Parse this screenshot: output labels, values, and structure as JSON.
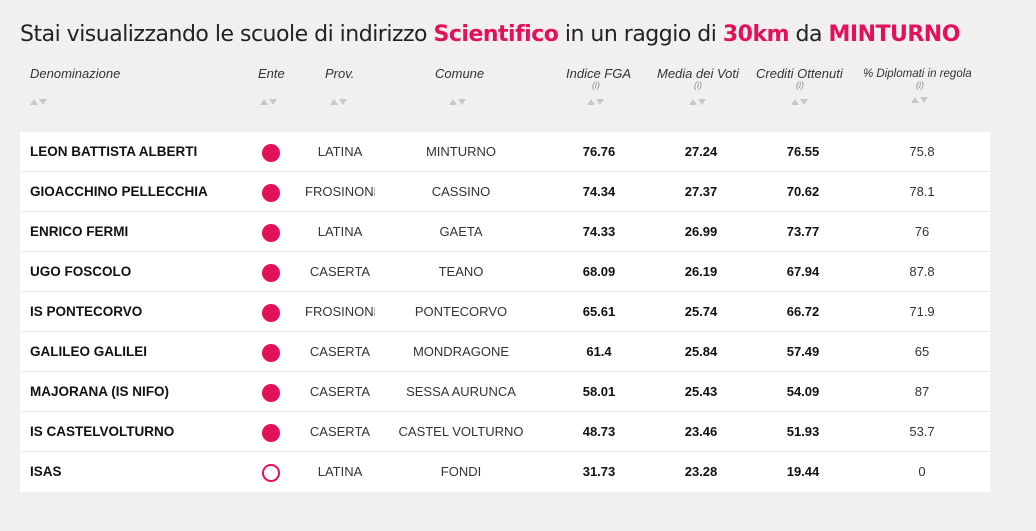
{
  "title": {
    "prefix": "Stai visualizzando le scuole di indirizzo ",
    "indirizzo": "Scientifico",
    "middle": " in un raggio di ",
    "raggio": "30km",
    "da": " da ",
    "citta": "MINTURNO"
  },
  "accent_color": "#e3105a",
  "columns": {
    "denominazione": "Denominazione",
    "ente": "Ente",
    "prov": "Prov.",
    "comune": "Comune",
    "indice_fga": "Indice FGA",
    "media_voti": "Media dei Voti",
    "crediti": "Crediti Ottenuti",
    "diplomati": "% Diplomati in regola",
    "info_marker": "(i)"
  },
  "rows": [
    {
      "name": "LEON BATTISTA ALBERTI",
      "ente": "filled-circle",
      "prov": "LATINA",
      "comune": "MINTURNO",
      "fga": "76.76",
      "media": "27.24",
      "crediti": "76.55",
      "diplomati": "75.8"
    },
    {
      "name": "GIOACCHINO PELLECCHIA",
      "ente": "filled-circle",
      "prov": "FROSINONE",
      "comune": "CASSINO",
      "fga": "74.34",
      "media": "27.37",
      "crediti": "70.62",
      "diplomati": "78.1"
    },
    {
      "name": "ENRICO FERMI",
      "ente": "filled-circle",
      "prov": "LATINA",
      "comune": "GAETA",
      "fga": "74.33",
      "media": "26.99",
      "crediti": "73.77",
      "diplomati": "76"
    },
    {
      "name": "UGO FOSCOLO",
      "ente": "filled-circle",
      "prov": "CASERTA",
      "comune": "TEANO",
      "fga": "68.09",
      "media": "26.19",
      "crediti": "67.94",
      "diplomati": "87.8"
    },
    {
      "name": "IS PONTECORVO",
      "ente": "filled-circle",
      "prov": "FROSINONE",
      "comune": "PONTECORVO",
      "fga": "65.61",
      "media": "25.74",
      "crediti": "66.72",
      "diplomati": "71.9"
    },
    {
      "name": "GALILEO GALILEI",
      "ente": "filled-circle",
      "prov": "CASERTA",
      "comune": "MONDRAGONE",
      "fga": "61.4",
      "media": "25.84",
      "crediti": "57.49",
      "diplomati": "65"
    },
    {
      "name": "MAJORANA (IS NIFO)",
      "ente": "filled-circle",
      "prov": "CASERTA",
      "comune": "SESSA AURUNCA",
      "fga": "58.01",
      "media": "25.43",
      "crediti": "54.09",
      "diplomati": "87"
    },
    {
      "name": "IS CASTELVOLTURNO",
      "ente": "filled-circle",
      "prov": "CASERTA",
      "comune": "CASTEL VOLTURNO",
      "fga": "48.73",
      "media": "23.46",
      "crediti": "51.93",
      "diplomati": "53.7"
    },
    {
      "name": "ISAS",
      "ente": "empty-circle",
      "prov": "LATINA",
      "comune": "FONDI",
      "fga": "31.73",
      "media": "23.28",
      "crediti": "19.44",
      "diplomati": "0"
    }
  ]
}
